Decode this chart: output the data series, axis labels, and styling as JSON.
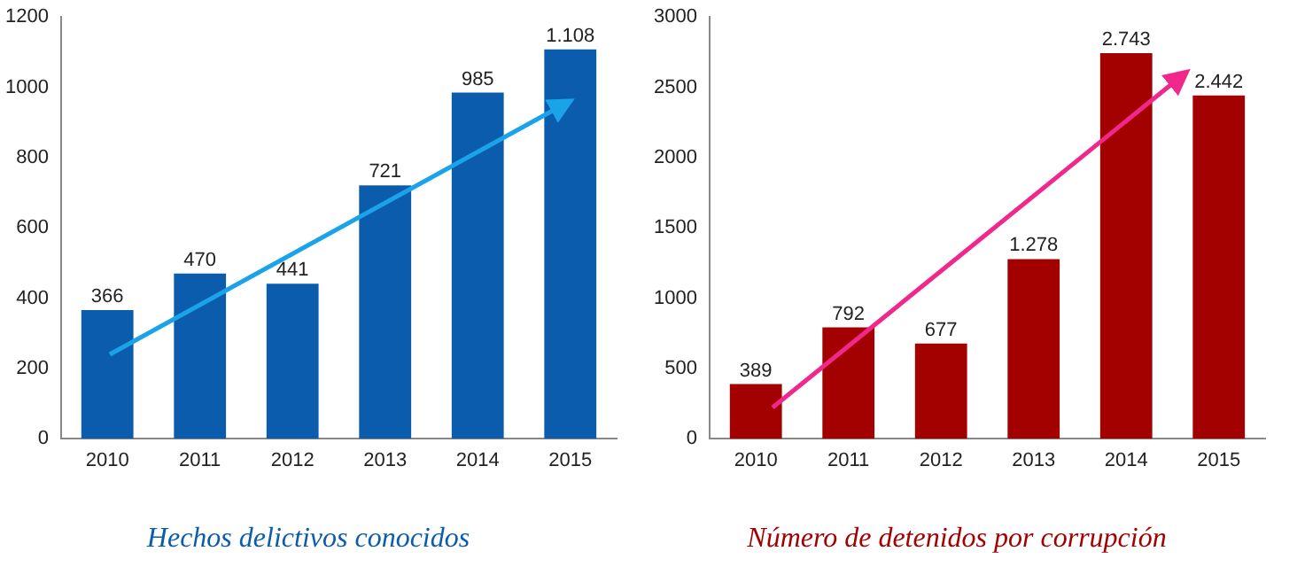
{
  "chart_data": [
    {
      "type": "bar",
      "title": "Hechos delictivos conocidos",
      "categories": [
        "2010",
        "2011",
        "2012",
        "2013",
        "2014",
        "2015"
      ],
      "series": [
        {
          "color": "#0b5cad",
          "values": [
            366,
            470,
            441,
            721,
            985,
            1108
          ],
          "value_labels": [
            "366",
            "470",
            "441",
            "721",
            "985",
            "1.108"
          ]
        }
      ],
      "ylim": [
        0,
        1200
      ],
      "yticks": [
        0,
        200,
        400,
        600,
        800,
        1000,
        1200
      ],
      "grid": false,
      "legend": false
    },
    {
      "type": "bar",
      "title": "Número de detenidos por corrupción",
      "categories": [
        "2010",
        "2011",
        "2012",
        "2013",
        "2014",
        "2015"
      ],
      "series": [
        {
          "color": "#a30000",
          "values": [
            389,
            792,
            677,
            1278,
            2743,
            2442
          ],
          "value_labels": [
            "389",
            "792",
            "677",
            "1.278",
            "2.743",
            "2.442"
          ]
        }
      ],
      "ylim": [
        0,
        3000
      ],
      "yticks": [
        0,
        500,
        1000,
        1500,
        2000,
        2500,
        3000
      ],
      "grid": false,
      "legend": false
    }
  ]
}
